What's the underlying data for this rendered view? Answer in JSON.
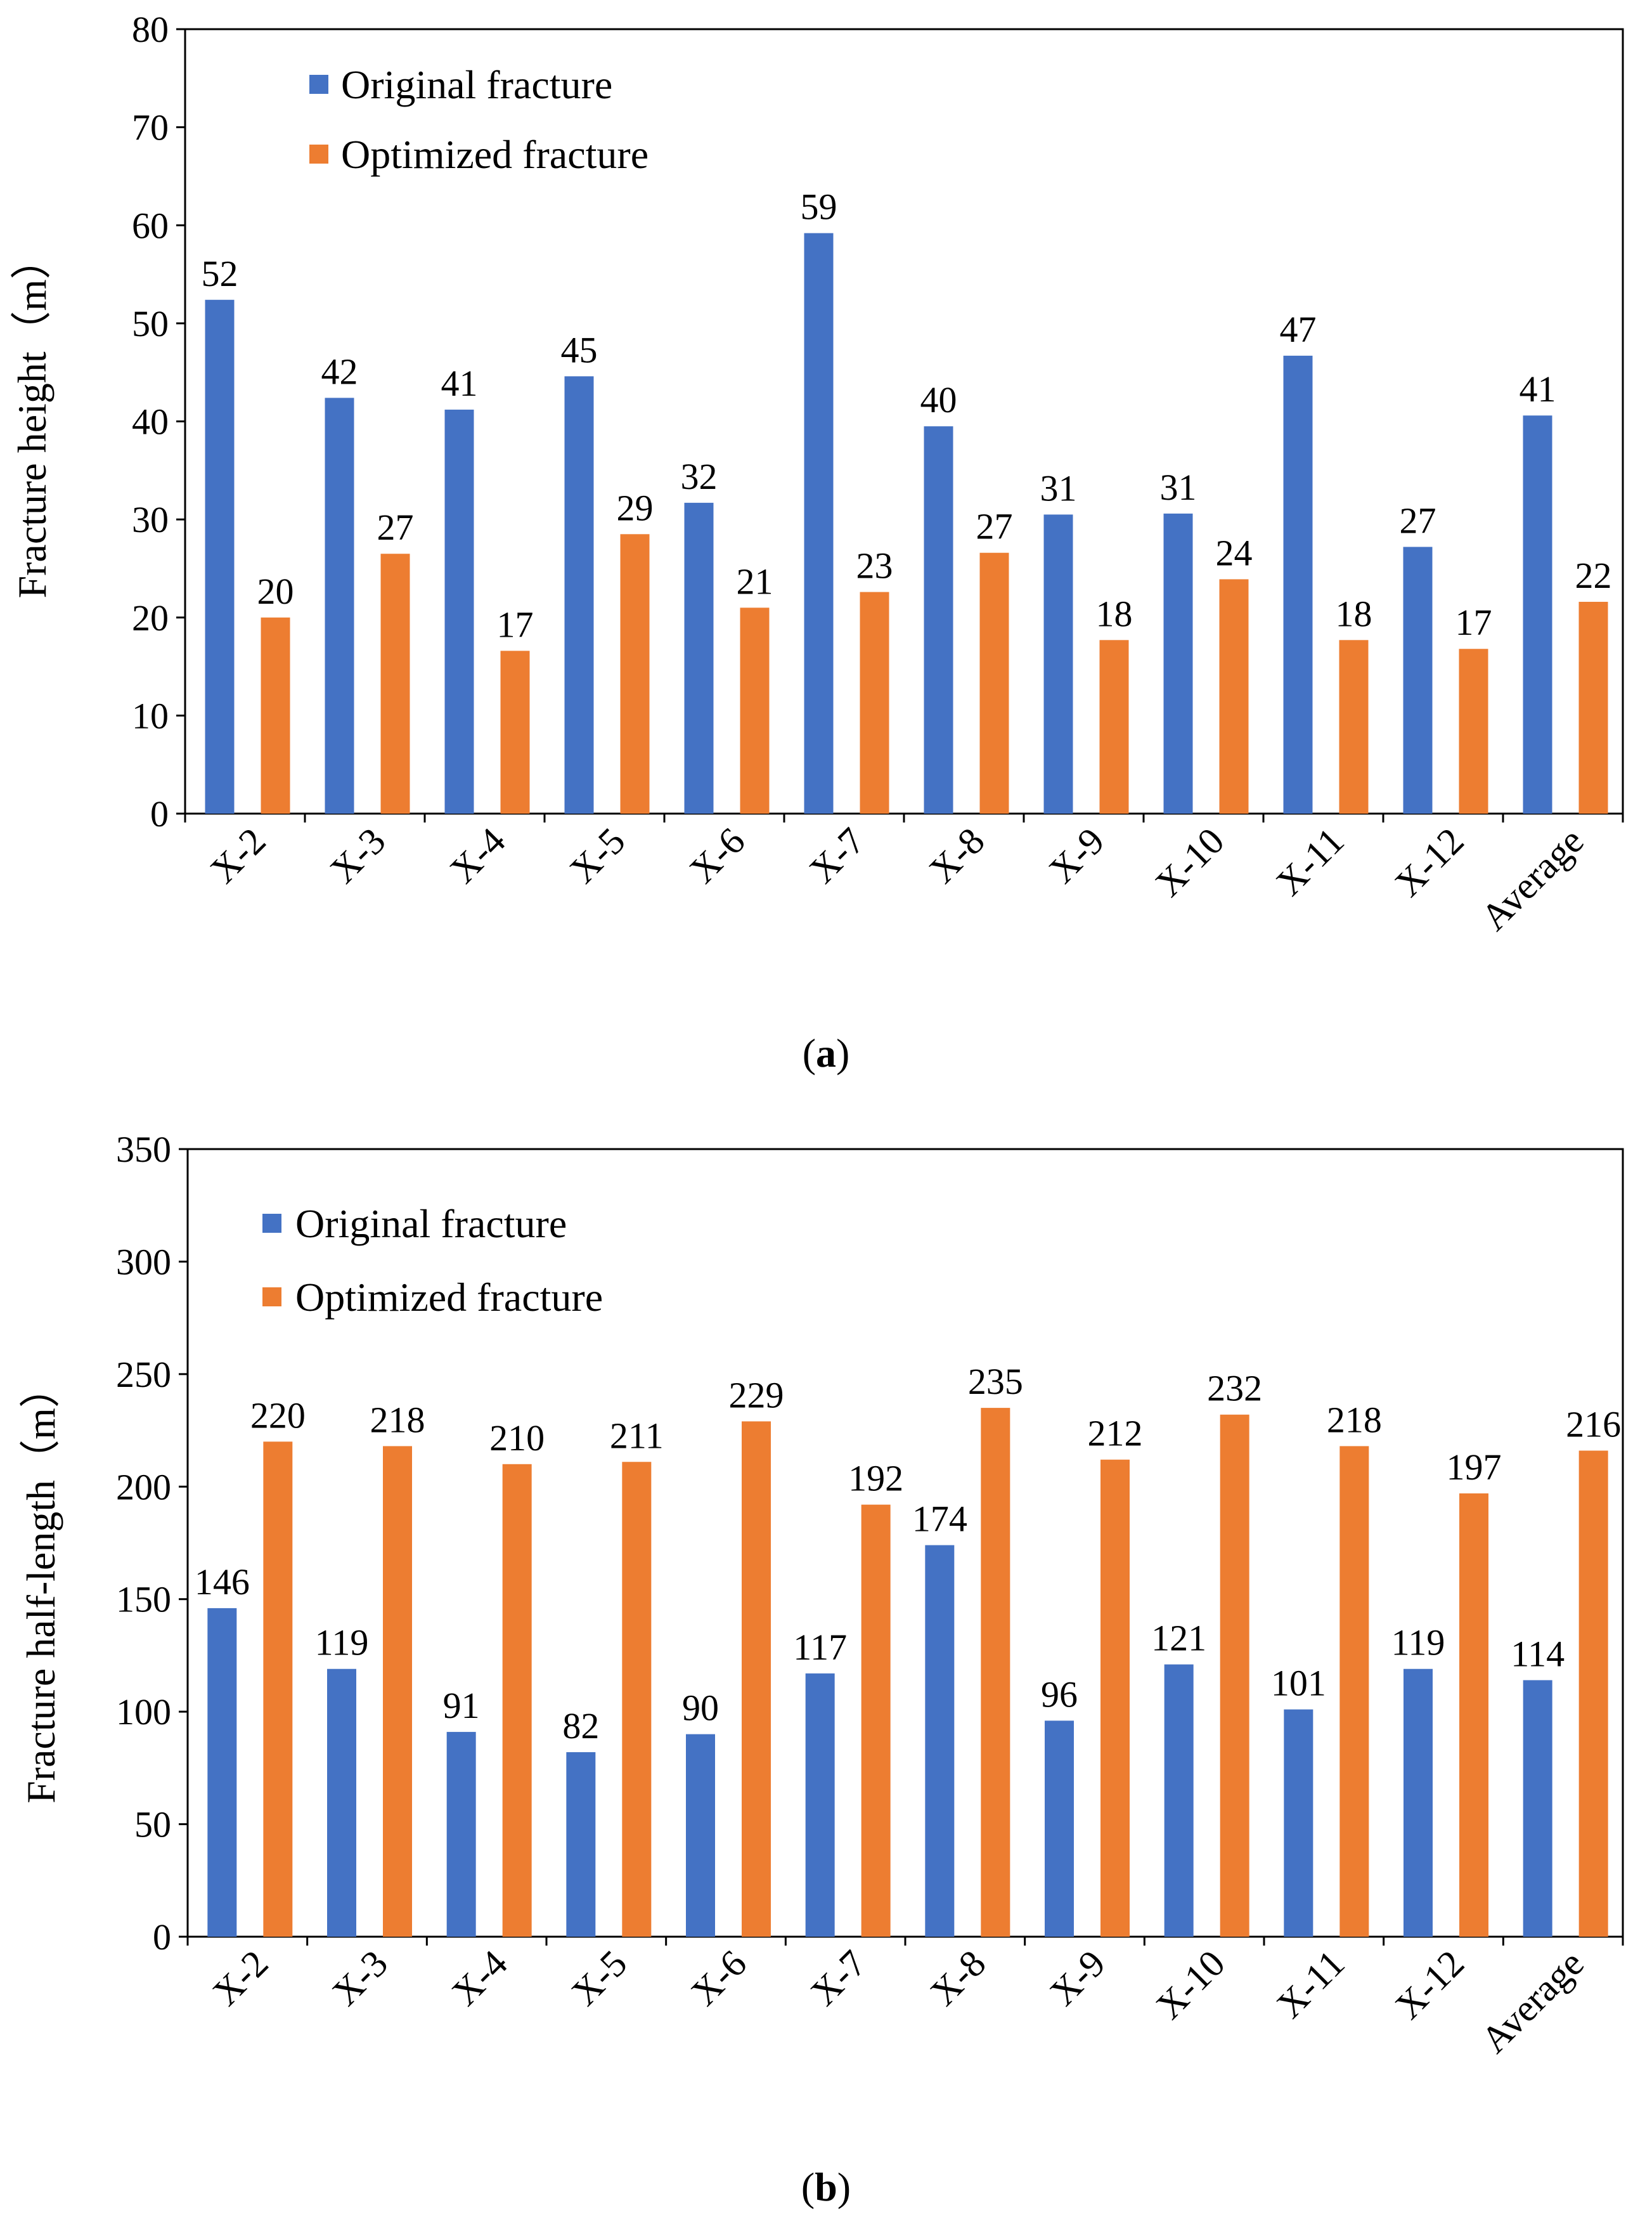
{
  "chart_data": [
    {
      "type": "bar",
      "title": "",
      "caption": {
        "open": "(",
        "letter": "a",
        "close": ")"
      },
      "xlabel": "",
      "ylabel": "Fracture height（m）",
      "ylim": [
        0,
        80
      ],
      "yticks": [
        0,
        10,
        20,
        30,
        40,
        50,
        60,
        70,
        80
      ],
      "grid": false,
      "legend_position": "top-left",
      "categories": [
        "X-2",
        "X-3",
        "X-4",
        "X-5",
        "X-6",
        "X-7",
        "X-8",
        "X-9",
        "X-10",
        "X-11",
        "X-12",
        "Average"
      ],
      "series": [
        {
          "name": "Original fracture",
          "color": "#4472C4",
          "values": [
            52.4,
            42.4,
            41.2,
            44.6,
            31.7,
            59.2,
            39.5,
            30.5,
            30.6,
            46.7,
            27.2,
            40.6
          ],
          "labels": [
            "52",
            "42",
            "41",
            "45",
            "32",
            "59",
            "40",
            "31",
            "31",
            "47",
            "27",
            "41"
          ]
        },
        {
          "name": "Optimized fracture",
          "color": "#ED7D31",
          "values": [
            20.0,
            26.5,
            16.6,
            28.5,
            21.0,
            22.6,
            26.6,
            17.7,
            23.9,
            17.7,
            16.8,
            21.6
          ],
          "labels": [
            "20",
            "27",
            "17",
            "29",
            "21",
            "23",
            "27",
            "18",
            "24",
            "18",
            "17",
            "22"
          ]
        }
      ]
    },
    {
      "type": "bar",
      "title": "",
      "caption": {
        "open": "(",
        "letter": "b",
        "close": ")"
      },
      "xlabel": "",
      "ylabel": "Fracture half-length（m）",
      "ylim": [
        0,
        350
      ],
      "yticks": [
        0,
        50,
        100,
        150,
        200,
        250,
        300,
        350
      ],
      "grid": false,
      "legend_position": "top-left",
      "categories": [
        "X-2",
        "X-3",
        "X-4",
        "X-5",
        "X-6",
        "X-7",
        "X-8",
        "X-9",
        "X-10",
        "X-11",
        "X-12",
        "Average"
      ],
      "series": [
        {
          "name": "Original fracture",
          "color": "#4472C4",
          "values": [
            146,
            119,
            91,
            82,
            90,
            117,
            174,
            96,
            121,
            101,
            119,
            114
          ],
          "labels": [
            "146",
            "119",
            "91",
            "82",
            "90",
            "117",
            "174",
            "96",
            "121",
            "101",
            "119",
            "114"
          ]
        },
        {
          "name": "Optimized fracture",
          "color": "#ED7D31",
          "values": [
            220,
            218,
            210,
            211,
            229,
            192,
            235,
            212,
            232,
            218,
            197,
            216
          ],
          "labels": [
            "220",
            "218",
            "210",
            "211",
            "229",
            "192",
            "235",
            "212",
            "232",
            "218",
            "197",
            "216"
          ]
        }
      ]
    }
  ]
}
